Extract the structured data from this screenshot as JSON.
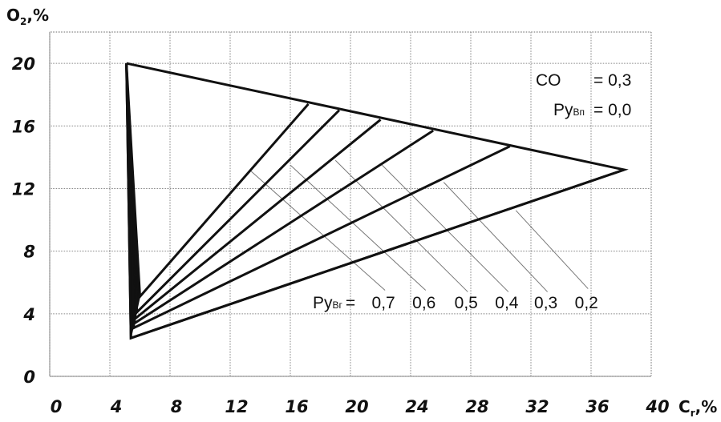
{
  "chart_data": {
    "type": "line",
    "title": "",
    "xlabel": "C",
    "xlabel_sub": "r",
    "xlabel_unit": ",%",
    "ylabel": "O",
    "ylabel_sub": "2",
    "ylabel_unit": ",%",
    "xlim": [
      0,
      40
    ],
    "ylim": [
      0,
      22
    ],
    "xticks": [
      0,
      4,
      8,
      12,
      16,
      20,
      24,
      28,
      32,
      36,
      40
    ],
    "yticks": [
      0,
      4,
      8,
      12,
      16,
      20
    ],
    "grid": true,
    "outline": {
      "name": "",
      "points": [
        [
          5.1,
          20.0
        ],
        [
          38.2,
          13.2
        ],
        [
          5.4,
          2.45
        ],
        [
          5.1,
          20.0
        ]
      ]
    },
    "series": [
      {
        "label": "0,7",
        "points": [
          [
            5.1,
            20.0
          ],
          [
            6.0,
            5.1
          ],
          [
            17.2,
            17.4
          ]
        ]
      },
      {
        "label": "0,6",
        "points": [
          [
            5.1,
            20.0
          ],
          [
            5.8,
            4.1
          ],
          [
            19.25,
            17.0
          ]
        ]
      },
      {
        "label": "0,5",
        "points": [
          [
            5.1,
            20.0
          ],
          [
            5.7,
            3.7
          ],
          [
            22.0,
            16.4
          ]
        ]
      },
      {
        "label": "0,4",
        "points": [
          [
            5.1,
            20.0
          ],
          [
            5.65,
            3.4
          ],
          [
            25.5,
            15.7
          ]
        ]
      },
      {
        "label": "0,3",
        "points": [
          [
            5.1,
            20.0
          ],
          [
            5.6,
            3.1
          ],
          [
            30.6,
            14.7
          ]
        ]
      },
      {
        "label": "0,2",
        "points": [
          [
            5.1,
            20.0
          ],
          [
            5.4,
            2.45
          ],
          [
            38.2,
            13.2
          ]
        ]
      }
    ],
    "leader_lines": [
      {
        "label": "0,7",
        "points": [
          [
            13.4,
            13.1
          ],
          [
            22.3,
            5.5
          ]
        ]
      },
      {
        "label": "0,6",
        "points": [
          [
            16.0,
            13.5
          ],
          [
            25.0,
            5.5
          ]
        ]
      },
      {
        "label": "0,5",
        "points": [
          [
            19.0,
            13.8
          ],
          [
            27.8,
            5.4
          ]
        ]
      },
      {
        "label": "0,4",
        "points": [
          [
            22.1,
            13.5
          ],
          [
            30.5,
            5.4
          ]
        ]
      },
      {
        "label": "0,3",
        "points": [
          [
            26.2,
            12.4
          ],
          [
            33.1,
            5.4
          ]
        ]
      },
      {
        "label": "0,2",
        "points": [
          [
            31.0,
            10.6
          ],
          [
            35.8,
            5.6
          ]
        ]
      }
    ],
    "annotations": {
      "co_label": "CO",
      "co_value": "= 0,3",
      "pyvn_label": "Ру",
      "pyvn_sub": "Вп",
      "pyvn_value": "= 0,0",
      "pyvr_label": "Ру",
      "pyvr_sub": "Вг",
      "pyvr_eq": "=",
      "pyvr_values": [
        "0,7",
        "0,6",
        "0,5",
        "0,4",
        "0,3",
        "0,2"
      ]
    },
    "colors": {
      "lines": "#111111",
      "leaders": "#777777",
      "grid": "#888888"
    }
  }
}
